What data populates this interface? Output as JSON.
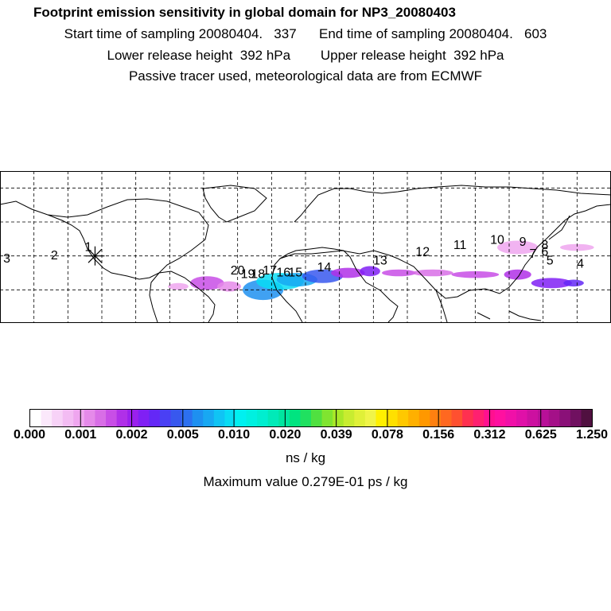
{
  "header": {
    "title": "Footprint emission sensitivity in global domain for NP3_20080403",
    "line2": "Start time of sampling 20080404.   337      End time of sampling 20080404.   603",
    "line3": "Lower release height  392 hPa        Upper release height  392 hPa",
    "line4": "Passive tracer used, meteorological data are from ECMWF"
  },
  "colorbar": {
    "tick_labels": [
      "0.000",
      "0.001",
      "0.002",
      "0.005",
      "0.010",
      "0.020",
      "0.039",
      "0.078",
      "0.156",
      "0.312",
      "0.625",
      "1.250"
    ],
    "colors": [
      "#ffffff",
      "#fbe8fb",
      "#f7d2f7",
      "#f3bcf3",
      "#efa6ef",
      "#e58ae9",
      "#d86ee6",
      "#c84ee6",
      "#b030e8",
      "#9a20ee",
      "#8020f4",
      "#6428f6",
      "#4a40f4",
      "#3858ee",
      "#2c70f0",
      "#1e90f0",
      "#18a8f2",
      "#10c4f4",
      "#08dcf4",
      "#00f0f0",
      "#00f0e0",
      "#00eed0",
      "#00eab8",
      "#00e6a0",
      "#00e480",
      "#20e060",
      "#50e040",
      "#80e430",
      "#a8e828",
      "#c8ec30",
      "#e0f038",
      "#f0f448",
      "#fff000",
      "#ffe000",
      "#ffc800",
      "#ffb000",
      "#ff9800",
      "#ff8010",
      "#ff6820",
      "#ff5030",
      "#ff3050",
      "#ff2070",
      "#ff1090",
      "#ff10a0",
      "#f010a8",
      "#e010a8",
      "#cc10a0",
      "#b81098",
      "#a41088",
      "#8a1078",
      "#701060",
      "#501040"
    ],
    "units": "ns / kg",
    "max_value": "Maximum value  0.279E-01 ps / kg"
  },
  "map": {
    "markers": [
      {
        "label": "1",
        "lon": -128,
        "lat": 43
      },
      {
        "label": "2",
        "lon": -148,
        "lat": 38
      },
      {
        "label": "3",
        "lon": -176,
        "lat": 36
      },
      {
        "label": "4",
        "lon": 162,
        "lat": 33
      },
      {
        "label": "5",
        "lon": 144,
        "lat": 35
      },
      {
        "label": "6",
        "lon": 141,
        "lat": 40
      },
      {
        "label": "7",
        "lon": 134,
        "lat": 39
      },
      {
        "label": "8",
        "lon": 141,
        "lat": 44
      },
      {
        "label": "9",
        "lon": 128,
        "lat": 46
      },
      {
        "label": "10",
        "lon": 113,
        "lat": 47
      },
      {
        "label": "11",
        "lon": 91,
        "lat": 44
      },
      {
        "label": "12",
        "lon": 69,
        "lat": 40
      },
      {
        "label": "13",
        "lon": 44,
        "lat": 35
      },
      {
        "label": "14",
        "lon": 11,
        "lat": 31
      },
      {
        "label": "15",
        "lon": -6,
        "lat": 28
      },
      {
        "label": "16",
        "lon": -13,
        "lat": 28
      },
      {
        "label": "17",
        "lon": -21,
        "lat": 29
      },
      {
        "label": "18",
        "lon": -28,
        "lat": 27
      },
      {
        "label": "19",
        "lon": -34,
        "lat": 27
      },
      {
        "label": "20",
        "lon": -40,
        "lat": 29
      }
    ],
    "receptor": {
      "lon": -124,
      "lat": 40
    },
    "plumes": [
      {
        "lon": -58,
        "lat": 24,
        "rx": 10,
        "ry": 4,
        "color": "#c84ee6"
      },
      {
        "lon": -45,
        "lat": 22,
        "rx": 7,
        "ry": 3,
        "color": "#e58ae9"
      },
      {
        "lon": -75,
        "lat": 22,
        "rx": 6,
        "ry": 2,
        "color": "#efa6ef"
      },
      {
        "lon": -25,
        "lat": 20,
        "rx": 12,
        "ry": 6,
        "color": "#1e90f0"
      },
      {
        "lon": -15,
        "lat": 25,
        "rx": 14,
        "ry": 5,
        "color": "#08dcf4"
      },
      {
        "lon": -5,
        "lat": 26,
        "rx": 12,
        "ry": 4,
        "color": "#18a8f2"
      },
      {
        "lon": 10,
        "lat": 28,
        "rx": 12,
        "ry": 4,
        "color": "#3858ee"
      },
      {
        "lon": 25,
        "lat": 30,
        "rx": 10,
        "ry": 3,
        "color": "#b030e8"
      },
      {
        "lon": 38,
        "lat": 31,
        "rx": 6,
        "ry": 3,
        "color": "#8020f4"
      },
      {
        "lon": 55,
        "lat": 30,
        "rx": 10,
        "ry": 2,
        "color": "#c84ee6"
      },
      {
        "lon": 75,
        "lat": 30,
        "rx": 12,
        "ry": 2,
        "color": "#d86ee6"
      },
      {
        "lon": 100,
        "lat": 29,
        "rx": 14,
        "ry": 2,
        "color": "#c84ee6"
      },
      {
        "lon": 125,
        "lat": 29,
        "rx": 8,
        "ry": 3,
        "color": "#b030e8"
      },
      {
        "lon": 145,
        "lat": 24,
        "rx": 12,
        "ry": 3,
        "color": "#8020f4"
      },
      {
        "lon": 158,
        "lat": 24,
        "rx": 6,
        "ry": 2,
        "color": "#6428f6"
      },
      {
        "lon": 125,
        "lat": 45,
        "rx": 12,
        "ry": 4,
        "color": "#efa6ef"
      },
      {
        "lon": 160,
        "lat": 45,
        "rx": 10,
        "ry": 2,
        "color": "#efa6ef"
      }
    ]
  }
}
